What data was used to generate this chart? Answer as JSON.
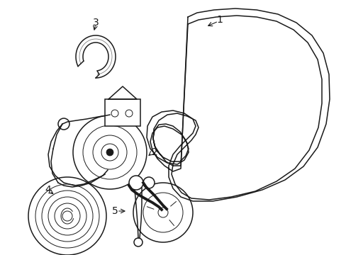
{
  "background_color": "#ffffff",
  "line_color": "#1a1a1a",
  "figsize": [
    4.89,
    3.6
  ],
  "dpi": 100,
  "belt_outer": {
    "x": [
      2.55,
      2.7,
      2.95,
      3.2,
      3.55,
      3.85,
      4.1,
      4.28,
      4.38,
      4.4,
      4.35,
      4.18,
      3.95,
      3.65,
      3.3,
      2.95,
      2.68,
      2.52,
      2.42,
      2.38,
      2.4,
      2.48,
      2.6,
      2.72,
      2.78,
      2.72,
      2.58,
      2.42,
      2.28,
      2.18,
      2.12,
      2.1,
      2.15,
      2.25,
      2.38,
      2.52,
      2.62,
      2.65,
      2.6,
      2.48,
      2.35,
      2.25,
      2.2,
      2.22,
      2.3,
      2.42,
      2.55
    ],
    "y": [
      3.28,
      3.38,
      3.45,
      3.48,
      3.44,
      3.35,
      3.18,
      2.95,
      2.65,
      2.3,
      1.95,
      1.62,
      1.35,
      1.12,
      0.98,
      0.9,
      0.92,
      1.0,
      1.12,
      1.28,
      1.45,
      1.6,
      1.72,
      1.88,
      2.05,
      2.22,
      2.35,
      2.45,
      2.48,
      2.42,
      2.3,
      2.15,
      2.0,
      1.88,
      1.8,
      1.82,
      1.92,
      2.08,
      2.25,
      2.38,
      2.48,
      2.58,
      2.72,
      2.88,
      3.02,
      3.15,
      3.28
    ]
  },
  "belt_inner": {
    "x": [
      2.55,
      2.72,
      2.98,
      3.22,
      3.52,
      3.8,
      4.02,
      4.18,
      4.26,
      4.28,
      4.22,
      4.05,
      3.82,
      3.55,
      3.22,
      2.9,
      2.65,
      2.52,
      2.44,
      2.42,
      2.44,
      2.52,
      2.62,
      2.72,
      2.76,
      2.68,
      2.54,
      2.38,
      2.26,
      2.18,
      2.14,
      2.12,
      2.18,
      2.28,
      2.4,
      2.5,
      2.58,
      2.6,
      2.55,
      2.44,
      2.32,
      2.24,
      2.2,
      2.24,
      2.32,
      2.44,
      2.55
    ],
    "y": [
      3.22,
      3.32,
      3.38,
      3.4,
      3.36,
      3.28,
      3.12,
      2.9,
      2.62,
      2.3,
      1.98,
      1.68,
      1.42,
      1.2,
      1.06,
      0.98,
      1.0,
      1.08,
      1.18,
      1.32,
      1.48,
      1.62,
      1.72,
      1.85,
      2.0,
      2.15,
      2.28,
      2.38,
      2.4,
      2.35,
      2.24,
      2.1,
      1.96,
      1.86,
      1.78,
      1.8,
      1.9,
      2.05,
      2.2,
      2.32,
      2.42,
      2.52,
      2.65,
      2.8,
      2.95,
      3.1,
      3.22
    ]
  }
}
